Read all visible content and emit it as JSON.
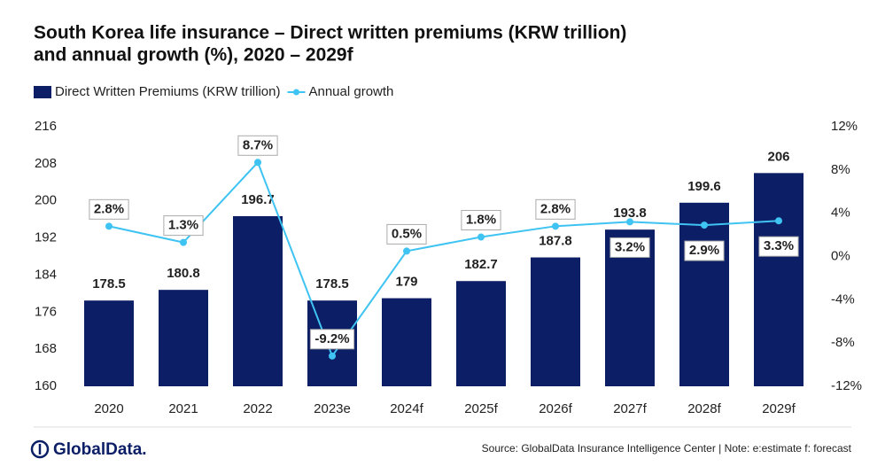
{
  "chart_data": {
    "type": "bar-line",
    "title": [
      "South Korea life insurance – Direct written premiums (KRW trillion)",
      "and annual growth (%), 2020 – 2029f"
    ],
    "categories": [
      "2020",
      "2021",
      "2022",
      "2023e",
      "2024f",
      "2025f",
      "2026f",
      "2027f",
      "2028f",
      "2029f"
    ],
    "series": [
      {
        "name": "Direct Written Premiums (KRW trillion)",
        "color": "#0c1f66",
        "type": "bar",
        "values": [
          178.5,
          180.8,
          196.7,
          178.5,
          179,
          182.7,
          187.8,
          193.8,
          199.6,
          206
        ]
      },
      {
        "name": "Annual growth",
        "color": "#3ec3f2",
        "type": "line",
        "axis": "y2",
        "values": [
          2.8,
          1.3,
          8.7,
          -9.2,
          0.5,
          1.8,
          2.8,
          3.2,
          2.9,
          3.3
        ],
        "value_labels": [
          "2.8%",
          "1.3%",
          "8.7%",
          "-9.2%",
          "0.5%",
          "1.8%",
          "2.8%",
          "3.2%",
          "2.9%",
          "3.3%"
        ]
      }
    ],
    "ylim": [
      160,
      216
    ],
    "yticks": [
      160,
      168,
      176,
      184,
      192,
      200,
      208,
      216
    ],
    "y2lim": [
      -12,
      12
    ],
    "y2ticks": [
      {
        "value": -12,
        "label": "-12%"
      },
      {
        "value": -8,
        "label": "-8%"
      },
      {
        "value": -4,
        "label": "-4%"
      },
      {
        "value": 0,
        "label": "0%"
      },
      {
        "value": 4,
        "label": "4%"
      },
      {
        "value": 8,
        "label": "8%"
      },
      {
        "value": 12,
        "label": "12%"
      }
    ],
    "legend": "top-left",
    "grid": false
  },
  "footer": {
    "logo": "GlobalData.",
    "source": "Source: GlobalData Insurance Intelligence Center | Note: e:estimate f: forecast"
  }
}
